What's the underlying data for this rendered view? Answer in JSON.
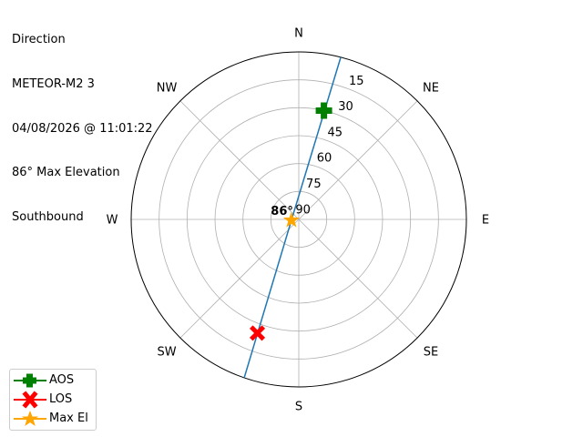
{
  "title_lines": [
    "Direction",
    "METEOR-M2 3",
    "04/08/2026 @ 11:01:22",
    "86° Max Elevation",
    "Southbound"
  ],
  "chart_data": {
    "type": "polar",
    "theta_direction": "clockwise",
    "theta_zero": "N",
    "compass_labels": [
      {
        "label": "N",
        "az": 0
      },
      {
        "label": "NE",
        "az": 45
      },
      {
        "label": "E",
        "az": 90
      },
      {
        "label": "SE",
        "az": 135
      },
      {
        "label": "S",
        "az": 180
      },
      {
        "label": "SW",
        "az": 225
      },
      {
        "label": "W",
        "az": 270
      },
      {
        "label": "NW",
        "az": 315
      }
    ],
    "radial_ticks": [
      "15",
      "30",
      "45",
      "60",
      "75",
      "90"
    ],
    "radial_tick_values": [
      15,
      30,
      45,
      60,
      75,
      90
    ],
    "radial_axis": "elevation, 90 at center, 0 at edge",
    "grid": true,
    "track": {
      "color": "#1f77b4",
      "points": [
        {
          "az": 14.5,
          "el": 0
        },
        {
          "az": 263,
          "el": 86
        },
        {
          "az": 199,
          "el": 0
        }
      ]
    },
    "markers": [
      {
        "name": "AOS",
        "az": 13,
        "el": 30,
        "color": "#008000",
        "shape": "plus"
      },
      {
        "name": "LOS",
        "az": 200,
        "el": 25,
        "color": "#ff0000",
        "shape": "x"
      },
      {
        "name": "Max El",
        "az": 263,
        "el": 86,
        "color": "#ffa500",
        "shape": "star"
      }
    ],
    "annotation": {
      "text": "86°",
      "az": 263,
      "el": 86
    },
    "legend_placement": "lower-left"
  }
}
